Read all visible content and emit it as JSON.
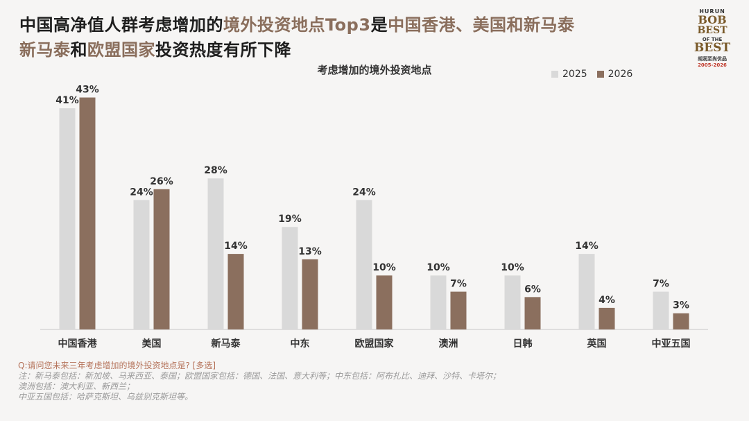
{
  "title": {
    "line1_a": "中国高净值人群考虑增加的",
    "line1_b": "境外投资地点Top3",
    "line1_c": "是",
    "line1_d": "中国香港、美国和新马泰",
    "line2_a": "新马泰",
    "line2_b": "和",
    "line2_c": "欧盟国家",
    "line2_d": "投资热度有所下降"
  },
  "logo": {
    "l1": "HURUN",
    "l2": "BOB",
    "l3": "BEST",
    "l4": "OF THE",
    "l5": "BEST",
    "l6": "胡润至尚优品",
    "l7": "2005-2026"
  },
  "colors": {
    "2025": "#d9d9d9",
    "2026": "#8b6f5e",
    "highlight": "#8a6e5c"
  },
  "chart_data": {
    "type": "bar",
    "title": "考虑增加的境外投资地点",
    "categories": [
      "中国香港",
      "美国",
      "新马泰",
      "中东",
      "欧盟国家",
      "澳洲",
      "日韩",
      "英国",
      "中亚五国"
    ],
    "series": [
      {
        "name": "2025",
        "values": [
          41,
          24,
          28,
          19,
          24,
          10,
          10,
          14,
          7
        ]
      },
      {
        "name": "2026",
        "values": [
          43,
          26,
          14,
          13,
          10,
          7,
          6,
          4,
          3
        ]
      }
    ],
    "value_suffix": "%",
    "legend": "top-right",
    "grid": false,
    "ylim": [
      0,
      45
    ]
  },
  "notes": {
    "question": "Q:请问您未来三年考虑增加的境外投资地点是? [多选]",
    "note1": "注：新马泰包括：新加坡、马来西亚、泰国；欧盟国家包括：德国、法国、意大利等；中东包括：阿布扎比、迪拜、沙特、卡塔尔；",
    "note2": "澳洲包括：澳大利亚、新西兰；",
    "note3": "中亚五国包括：哈萨克斯坦、乌兹别克斯坦等。"
  }
}
